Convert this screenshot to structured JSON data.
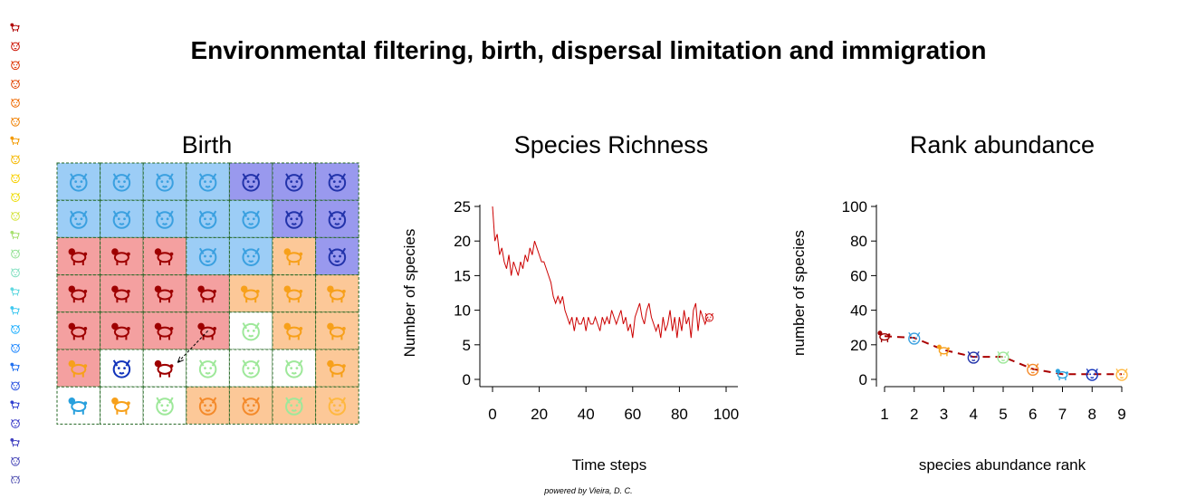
{
  "title": "Environmental filtering, birth, dispersal limitation and immigration",
  "credit": "powered by Vieira, D. C.",
  "colors": {
    "species": [
      "#9e0000",
      "#3aa0e0",
      "#f7a01a",
      "#2233aa",
      "#9ee89a",
      "#f48a2a",
      "#28a0dd",
      "#1133bb",
      "#ffb840"
    ],
    "light": [
      "#f4a0a0",
      "#9ccdf6",
      "#fcc898",
      "#9999ee",
      "#ffffff"
    ],
    "line": "#cc0000",
    "rank_line": "#aa0000",
    "grid_border": "#226622"
  },
  "legend_icons": [
    {
      "icon": "poodle-icon",
      "color": "#b00000"
    },
    {
      "icon": "cat-icon",
      "color": "#cc1100"
    },
    {
      "icon": "dog-icon",
      "color": "#dd3300"
    },
    {
      "icon": "fox-icon",
      "color": "#e04400"
    },
    {
      "icon": "pig-icon",
      "color": "#ef6a00"
    },
    {
      "icon": "pig-icon",
      "color": "#f08000"
    },
    {
      "icon": "cow-icon",
      "color": "#f39a00"
    },
    {
      "icon": "cat-icon",
      "color": "#f6b800"
    },
    {
      "icon": "bear-icon",
      "color": "#f8d000"
    },
    {
      "icon": "bird-icon",
      "color": "#eedc00"
    },
    {
      "icon": "butterfly-icon",
      "color": "#d6e440"
    },
    {
      "icon": "horse-icon",
      "color": "#a8e070"
    },
    {
      "icon": "bug-icon",
      "color": "#90e090"
    },
    {
      "icon": "rose-icon",
      "color": "#80e0c0"
    },
    {
      "icon": "horse-icon",
      "color": "#60d8e0"
    },
    {
      "icon": "horse-icon",
      "color": "#40c8f0"
    },
    {
      "icon": "wolf-icon",
      "color": "#20b0ff"
    },
    {
      "icon": "fox-icon",
      "color": "#2088ff"
    },
    {
      "icon": "horse-icon",
      "color": "#2070f0"
    },
    {
      "icon": "bird-icon",
      "color": "#2850e0"
    },
    {
      "icon": "cow-icon",
      "color": "#3040d0"
    },
    {
      "icon": "tiger-icon",
      "color": "#3838c8"
    },
    {
      "icon": "horse-icon",
      "color": "#4040c0"
    },
    {
      "icon": "bear-icon",
      "color": "#4848b8"
    },
    {
      "icon": "tiger-icon",
      "color": "#5050b0"
    }
  ],
  "birth_panel": {
    "title": "Birth",
    "rows": 7,
    "cols": 7,
    "cells": [
      [
        {
          "bg": 1,
          "sp": 1,
          "icon": "wolf-icon"
        },
        {
          "bg": 1,
          "sp": 1,
          "icon": "wolf-icon"
        },
        {
          "bg": 1,
          "sp": 1,
          "icon": "wolf-icon"
        },
        {
          "bg": 1,
          "sp": 1,
          "icon": "wolf-icon"
        },
        {
          "bg": 3,
          "sp": 3,
          "icon": "tiger-icon"
        },
        {
          "bg": 3,
          "sp": 3,
          "icon": "tiger-icon"
        },
        {
          "bg": 3,
          "sp": 3,
          "icon": "tiger-icon"
        }
      ],
      [
        {
          "bg": 1,
          "sp": 1,
          "icon": "wolf-icon"
        },
        {
          "bg": 1,
          "sp": 1,
          "icon": "wolf-icon"
        },
        {
          "bg": 1,
          "sp": 1,
          "icon": "wolf-icon"
        },
        {
          "bg": 1,
          "sp": 1,
          "icon": "wolf-icon"
        },
        {
          "bg": 1,
          "sp": 1,
          "icon": "wolf-icon"
        },
        {
          "bg": 3,
          "sp": 3,
          "icon": "tiger-icon"
        },
        {
          "bg": 3,
          "sp": 3,
          "icon": "tiger-icon"
        }
      ],
      [
        {
          "bg": 0,
          "sp": 0,
          "icon": "poodle-icon"
        },
        {
          "bg": 0,
          "sp": 0,
          "icon": "poodle-icon"
        },
        {
          "bg": 0,
          "sp": 0,
          "icon": "poodle-icon"
        },
        {
          "bg": 1,
          "sp": 1,
          "icon": "wolf-icon"
        },
        {
          "bg": 1,
          "sp": 1,
          "icon": "wolf-icon"
        },
        {
          "bg": 2,
          "sp": 2,
          "icon": "cow-icon"
        },
        {
          "bg": 3,
          "sp": 3,
          "icon": "tiger-icon"
        }
      ],
      [
        {
          "bg": 0,
          "sp": 0,
          "icon": "poodle-icon"
        },
        {
          "bg": 0,
          "sp": 0,
          "icon": "poodle-icon"
        },
        {
          "bg": 0,
          "sp": 0,
          "icon": "poodle-icon"
        },
        {
          "bg": 0,
          "sp": 0,
          "icon": "poodle-icon"
        },
        {
          "bg": 2,
          "sp": 2,
          "icon": "cow-icon"
        },
        {
          "bg": 2,
          "sp": 2,
          "icon": "cow-icon"
        },
        {
          "bg": 2,
          "sp": 2,
          "icon": "cow-icon"
        }
      ],
      [
        {
          "bg": 0,
          "sp": 0,
          "icon": "poodle-icon"
        },
        {
          "bg": 0,
          "sp": 0,
          "icon": "poodle-icon"
        },
        {
          "bg": 0,
          "sp": 0,
          "icon": "poodle-icon"
        },
        {
          "bg": 0,
          "sp": 0,
          "icon": "poodle-icon"
        },
        {
          "bg": 4,
          "sp": 4,
          "icon": "cat-icon"
        },
        {
          "bg": 2,
          "sp": 2,
          "icon": "cow-icon"
        },
        {
          "bg": 2,
          "sp": 2,
          "icon": "cow-icon"
        }
      ],
      [
        {
          "bg": 0,
          "sp": 2,
          "icon": "cow-icon"
        },
        {
          "bg": 4,
          "sp": 7,
          "icon": "lion-icon"
        },
        {
          "bg": 4,
          "sp": 0,
          "icon": "poodle-icon"
        },
        {
          "bg": 4,
          "sp": 4,
          "icon": "cat-icon"
        },
        {
          "bg": 4,
          "sp": 4,
          "icon": "cat-icon"
        },
        {
          "bg": 4,
          "sp": 4,
          "icon": "cat-icon"
        },
        {
          "bg": 2,
          "sp": 2,
          "icon": "cow-icon"
        }
      ],
      [
        {
          "bg": 4,
          "sp": 6,
          "icon": "cow-icon"
        },
        {
          "bg": 4,
          "sp": 2,
          "icon": "cow-icon"
        },
        {
          "bg": 4,
          "sp": 4,
          "icon": "cat-icon"
        },
        {
          "bg": 2,
          "sp": 5,
          "icon": "pig-icon"
        },
        {
          "bg": 2,
          "sp": 5,
          "icon": "pig-icon"
        },
        {
          "bg": 2,
          "sp": 4,
          "icon": "pig-icon"
        },
        {
          "bg": 2,
          "sp": 8,
          "icon": "cat-icon"
        }
      ]
    ],
    "arrow": {
      "from": [
        3,
        4
      ],
      "to": [
        2,
        5
      ]
    }
  },
  "chart_data": [
    {
      "type": "line",
      "title": "Species Richness",
      "xlabel": "Time steps",
      "ylabel": "Number of species",
      "xlim": [
        0,
        100
      ],
      "ylim": [
        0,
        25
      ],
      "xticks": [
        "0",
        "20",
        "40",
        "60",
        "80",
        "100"
      ],
      "yticks": [
        "0",
        "5",
        "10",
        "15",
        "20",
        "25"
      ],
      "x_start": 0,
      "x_step": 1,
      "values": [
        25,
        20,
        21,
        18,
        19,
        17,
        16,
        18,
        15,
        17,
        16,
        15,
        17,
        16,
        18,
        17,
        19,
        18,
        20,
        19,
        18,
        17,
        17,
        16,
        15,
        14,
        12,
        11,
        12,
        11,
        12,
        10,
        9,
        8,
        9,
        7,
        9,
        8,
        8,
        9,
        7,
        9,
        8,
        8,
        9,
        8,
        7,
        9,
        8,
        9,
        8,
        10,
        9,
        8,
        9,
        10,
        8,
        9,
        7,
        8,
        6,
        9,
        10,
        11,
        9,
        8,
        10,
        11,
        9,
        8,
        7,
        8,
        6,
        9,
        7,
        8,
        10,
        7,
        9,
        6,
        9,
        7,
        10,
        8,
        9,
        6,
        10,
        11,
        7,
        10,
        9,
        8,
        9
      ],
      "end_marker_icon": "cat-icon"
    },
    {
      "type": "scatter",
      "title": "Rank abundance",
      "xlabel": "species abundance rank",
      "ylabel": "number of species",
      "xlim": [
        1,
        9
      ],
      "ylim": [
        0,
        100
      ],
      "xticks": [
        "1",
        "2",
        "3",
        "4",
        "5",
        "6",
        "7",
        "8",
        "9"
      ],
      "yticks": [
        "0",
        "20",
        "40",
        "60",
        "80",
        "100"
      ],
      "ranks": [
        1,
        2,
        3,
        4,
        5,
        6,
        7,
        8,
        9
      ],
      "values": [
        25,
        24,
        17,
        13,
        13,
        6,
        3,
        3,
        3
      ],
      "icons": [
        "poodle-icon",
        "wolf-icon",
        "cow-icon",
        "tiger-icon",
        "cat-icon",
        "pig-icon",
        "cow-icon",
        "lion-icon",
        "cat-icon"
      ]
    }
  ]
}
